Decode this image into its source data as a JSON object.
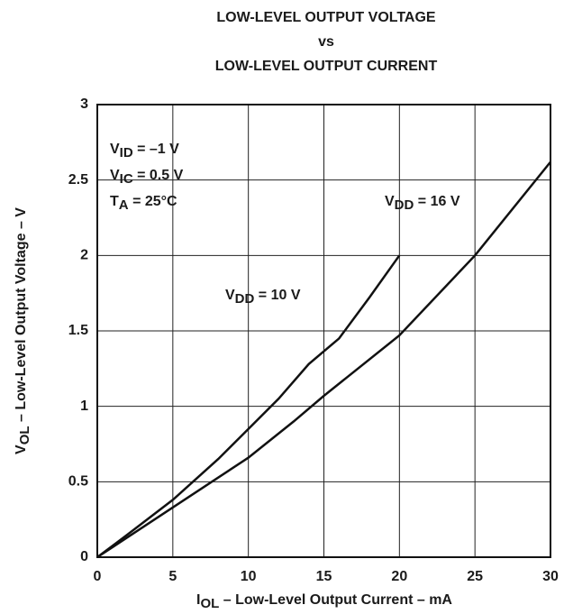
{
  "chart_data": {
    "type": "line",
    "title": [
      "LOW-LEVEL OUTPUT VOLTAGE",
      "vs",
      "LOW-LEVEL OUTPUT CURRENT"
    ],
    "x_label": [
      "I",
      "OL",
      " – Low-Level Output Current – mA"
    ],
    "y_label": [
      "V",
      "OL",
      " – Low-Level Output Voltage – V"
    ],
    "conditions": [
      [
        "V",
        "ID",
        " = –1 V"
      ],
      [
        "V",
        "IC",
        " = 0.5 V"
      ],
      [
        "T",
        "A",
        " = 25°C"
      ]
    ],
    "xlim": [
      0,
      30
    ],
    "xticks": [
      0,
      5,
      10,
      15,
      20,
      25,
      30
    ],
    "ylim": [
      0,
      3
    ],
    "yticks": [
      0,
      0.5,
      1,
      1.5,
      2,
      2.5,
      3
    ],
    "grid": true,
    "series": [
      {
        "name": [
          "V",
          "DD",
          " = 10 V"
        ],
        "color": "#111111",
        "x": [
          0,
          2,
          5,
          8,
          10,
          12,
          14,
          16,
          18,
          20
        ],
        "values": [
          0,
          0.15,
          0.38,
          0.65,
          0.85,
          1.05,
          1.28,
          1.45,
          1.72,
          2.0
        ]
      },
      {
        "name": [
          "V",
          "DD",
          " = 16 V"
        ],
        "color": "#111111",
        "x": [
          0,
          5,
          10,
          13,
          15,
          20,
          25,
          30
        ],
        "values": [
          0,
          0.33,
          0.66,
          0.9,
          1.07,
          1.47,
          2.0,
          2.62
        ]
      }
    ]
  }
}
